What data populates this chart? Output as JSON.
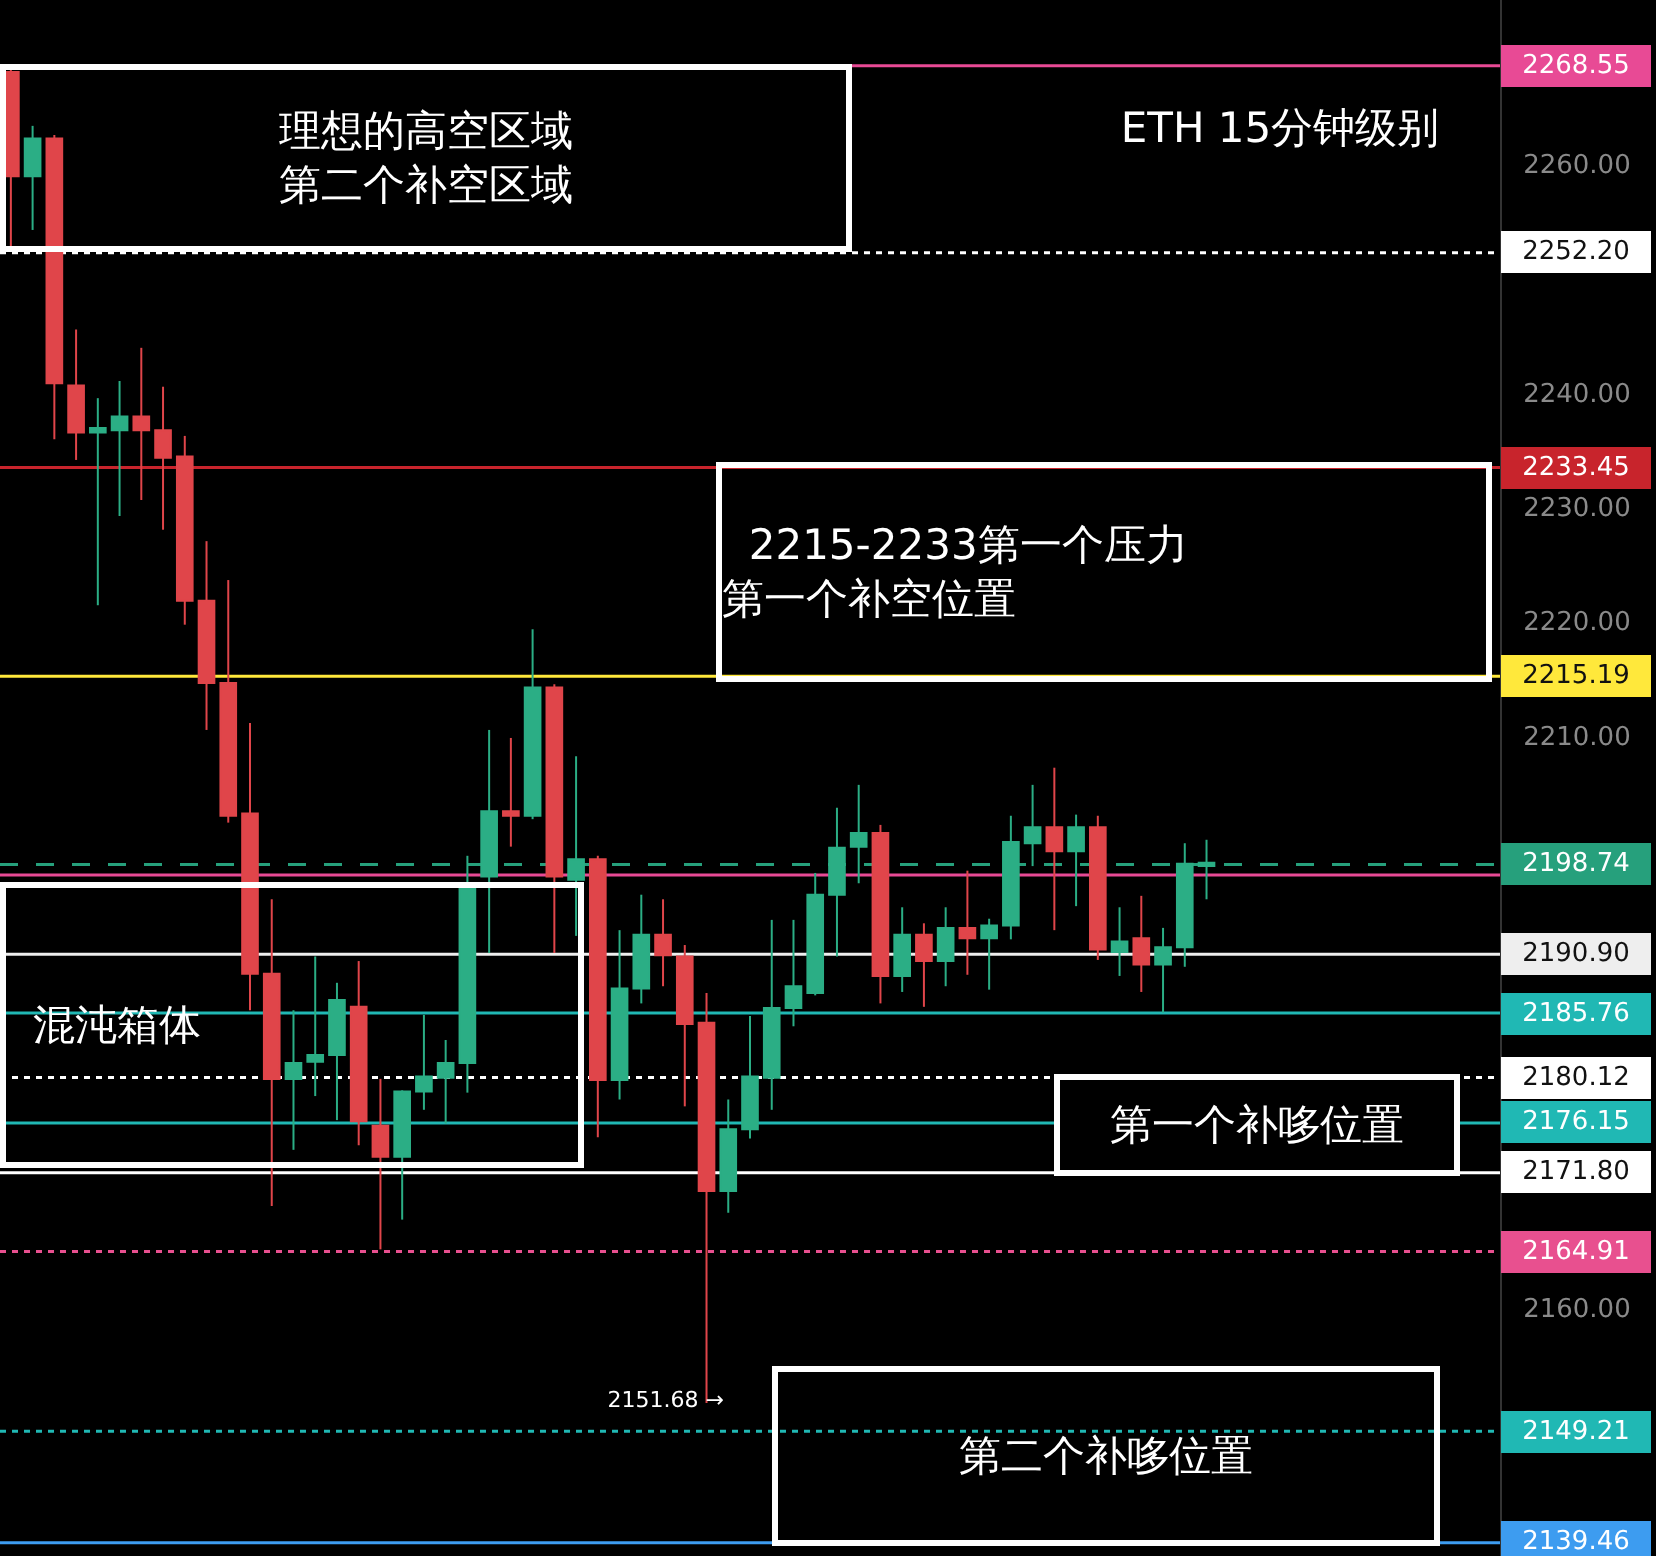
{
  "chart_data": {
    "type": "candlestick",
    "categories": [
      null,
      null,
      null,
      null,
      null,
      null,
      null,
      null,
      null,
      null,
      null,
      null,
      null,
      null,
      null,
      null,
      null,
      null,
      null,
      null,
      null,
      null,
      null,
      null,
      null,
      null,
      null,
      null,
      null,
      null,
      null,
      null,
      null,
      null,
      null,
      null,
      null,
      null,
      null,
      null,
      null,
      null,
      null,
      null,
      null,
      null,
      null,
      null,
      null,
      null,
      null,
      null,
      null,
      null,
      null,
      null,
      null,
      null,
      null,
      null,
      null,
      null,
      null,
      null,
      null,
      null,
      null,
      null,
      null
    ],
    "ohlc": [
      [
        2268.0,
        2268.6,
        2252.8,
        2258.9
      ],
      [
        2258.9,
        2263.3,
        2254.2,
        2262.2
      ],
      [
        2262.2,
        2262.5,
        2235.9,
        2240.8
      ],
      [
        2240.6,
        2245.5,
        2234.1,
        2236.5
      ],
      [
        2236.5,
        2239.5,
        2221.4,
        2236.9
      ],
      [
        2236.7,
        2241.0,
        2229.2,
        2237.9
      ],
      [
        2237.9,
        2243.9,
        2230.6,
        2236.7
      ],
      [
        2236.7,
        2240.5,
        2228.0,
        2234.3
      ],
      [
        2234.4,
        2236.2,
        2219.7,
        2221.8
      ],
      [
        2221.8,
        2227.0,
        2210.5,
        2214.6
      ],
      [
        2214.6,
        2223.6,
        2202.4,
        2203.0
      ],
      [
        2203.2,
        2211.1,
        2186.0,
        2189.2
      ],
      [
        2189.2,
        2195.7,
        2168.9,
        2180.0
      ],
      [
        2180.0,
        2186.0,
        2173.8,
        2181.4
      ],
      [
        2181.5,
        2190.7,
        2178.5,
        2182.1
      ],
      [
        2182.1,
        2188.4,
        2176.4,
        2186.9
      ],
      [
        2186.3,
        2190.3,
        2174.2,
        2176.3
      ],
      [
        2175.9,
        2180.0,
        2165.1,
        2173.2
      ],
      [
        2173.2,
        2179.0,
        2167.7,
        2178.9
      ],
      [
        2178.9,
        2185.6,
        2177.3,
        2180.2
      ],
      [
        2180.1,
        2183.4,
        2176.1,
        2181.4
      ],
      [
        2181.4,
        2199.5,
        2178.8,
        2196.7
      ],
      [
        2197.7,
        2210.5,
        2191.0,
        2203.4
      ],
      [
        2203.4,
        2209.8,
        2200.3,
        2203.0
      ],
      [
        2203.0,
        2219.3,
        2202.7,
        2214.2
      ],
      [
        2214.2,
        2214.5,
        2191.0,
        2197.7
      ],
      [
        2197.4,
        2208.2,
        2192.5,
        2199.2
      ],
      [
        2199.2,
        2199.5,
        2174.9,
        2179.9
      ],
      [
        2179.9,
        2193.0,
        2178.2,
        2187.9
      ],
      [
        2187.9,
        2196.1,
        2186.6,
        2192.6
      ],
      [
        2192.6,
        2195.7,
        2188.1,
        2190.8
      ],
      [
        2190.7,
        2191.7,
        2177.6,
        2184.8
      ],
      [
        2184.9,
        2187.5,
        2151.68,
        2170.2
      ],
      [
        2170.2,
        2178.2,
        2168.3,
        2175.6
      ],
      [
        2175.6,
        2185.5,
        2174.8,
        2180.2
      ],
      [
        2180.1,
        2193.9,
        2177.3,
        2186.2
      ],
      [
        2186.2,
        2193.9,
        2184.6,
        2188.1
      ],
      [
        2187.5,
        2198.0,
        2187.3,
        2196.1
      ],
      [
        2196.1,
        2203.7,
        2190.7,
        2200.2
      ],
      [
        2200.3,
        2205.7,
        2197.1,
        2201.5
      ],
      [
        2201.5,
        2202.2,
        2186.6,
        2189.0
      ],
      [
        2189.0,
        2195.0,
        2187.6,
        2192.6
      ],
      [
        2192.6,
        2193.6,
        2186.3,
        2190.3
      ],
      [
        2190.3,
        2195.0,
        2188.1,
        2193.2
      ],
      [
        2193.2,
        2198.2,
        2189.1,
        2192.3
      ],
      [
        2192.3,
        2194.0,
        2187.8,
        2193.4
      ],
      [
        2193.4,
        2203.0,
        2192.2,
        2200.7
      ],
      [
        2200.6,
        2205.7,
        2198.6,
        2202.0
      ],
      [
        2202.0,
        2207.2,
        2193.0,
        2199.9
      ],
      [
        2199.9,
        2203.1,
        2195.1,
        2202.0
      ],
      [
        2202.0,
        2203.0,
        2190.4,
        2191.3
      ],
      [
        2191.1,
        2195.0,
        2189.0,
        2192.0
      ],
      [
        2192.3,
        2196.0,
        2187.6,
        2190.0
      ],
      [
        2190.0,
        2193.2,
        2185.8,
        2191.5
      ],
      [
        2191.5,
        2200.6,
        2189.8,
        2198.8
      ],
      [
        2198.6,
        2200.9,
        2195.7,
        2198.9
      ],
      null,
      null,
      null,
      null,
      null,
      null,
      null,
      null,
      null,
      null,
      null,
      null,
      null
    ],
    "ylim": [
      2138.3,
      2274.3
    ],
    "yticks": [
      {
        "value": 2160,
        "label": "2160.00"
      },
      {
        "value": 2210,
        "label": "2210.00"
      },
      {
        "value": 2220,
        "label": "2220.00"
      },
      {
        "value": 2230,
        "label": "2230.00"
      },
      {
        "value": 2240,
        "label": "2240.00"
      },
      {
        "value": 2260,
        "label": "2260.00"
      }
    ],
    "tick_labels": "y",
    "ref_lines": [
      {
        "axis": "y",
        "value": 2268.55,
        "label": "2268.55",
        "color": "#e84a95",
        "line_style": "solid"
      },
      {
        "axis": "y",
        "value": 2252.2,
        "label": "2252.20",
        "color": "#ffffff",
        "line_style": "dotted"
      },
      {
        "axis": "y",
        "value": 2233.45,
        "label": "2233.45",
        "color": "#c8242c",
        "line_style": "solid"
      },
      {
        "axis": "y",
        "value": 2215.19,
        "label": "2215.19",
        "color": "#ffe83b",
        "line_style": "solid"
      },
      {
        "axis": "y",
        "value": 2198.74,
        "label": "2198.74",
        "color": "#26a07c",
        "line_style": "dashed"
      },
      {
        "axis": "y",
        "value": 2197.82,
        "color": "#e84a95",
        "line_style": "solid"
      },
      {
        "axis": "y",
        "value": 2190.9,
        "label": "2190.90",
        "color": "#eeeeee",
        "line_style": "solid"
      },
      {
        "axis": "y",
        "value": 2185.76,
        "label": "2185.76",
        "color": "#20b8b4",
        "line_style": "solid"
      },
      {
        "axis": "y",
        "value": 2180.12,
        "label": "2180.12",
        "color": "#ffffff",
        "line_style": "dotted"
      },
      {
        "axis": "y",
        "value": 2176.15,
        "label": "2176.15",
        "color": "#20b8b4",
        "line_style": "solid"
      },
      {
        "axis": "y",
        "value": 2171.8,
        "label": "2171.80",
        "color": "#ffffff",
        "line_style": "solid"
      },
      {
        "axis": "y",
        "value": 2164.91,
        "label": "2164.91",
        "color": "#e8508f",
        "line_style": "dotted"
      },
      {
        "axis": "y",
        "value": 2149.21,
        "label": "2149.21",
        "color": "#20b8b4",
        "line_style": "dotted"
      },
      {
        "axis": "y",
        "value": 2139.46,
        "label": "2139.46",
        "color": "#3d9cf0",
        "line_style": "solid"
      }
    ],
    "annotations": [
      "理想的高空区域第二个补空区域",
      "ETH 15分钟级别",
      "2215-2233第一个压力第一个补空位置",
      "混沌箱体",
      "第一个补哆位置",
      "2151.68 →",
      "第二个补哆位置"
    ]
  }
}
